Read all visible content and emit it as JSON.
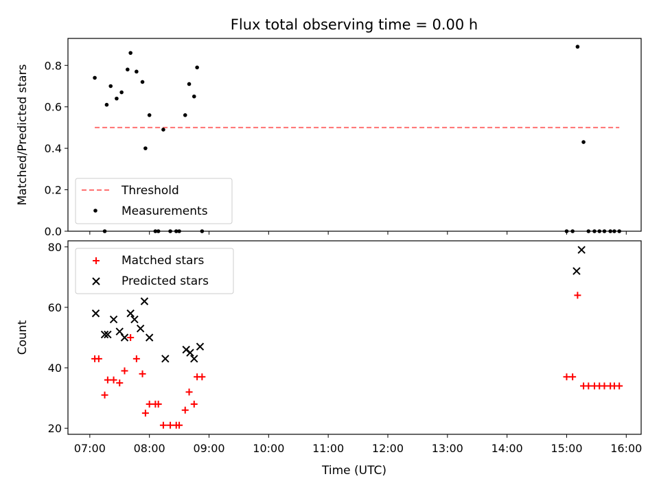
{
  "title": "Flux total observing time = 0.00 h",
  "xlabel": "Time (UTC)",
  "colors": {
    "threshold": "#ff7070",
    "matched": "#ff0000",
    "predicted": "#000000",
    "measurements": "#000000"
  },
  "chart_data": [
    {
      "type": "scatter",
      "ylabel": "Matched/Predicted stars",
      "xlim": [
        "06:38",
        "16:15"
      ],
      "ylim": [
        0,
        0.93
      ],
      "yticks": [
        "0.0",
        "0.2",
        "0.4",
        "0.6",
        "0.8"
      ],
      "legend_position": "lower-left",
      "threshold": {
        "name": "Threshold",
        "x": [
          "07:05",
          "15:53"
        ],
        "y": 0.5
      },
      "series": [
        {
          "name": "Measurements",
          "x": [
            "07:05",
            "07:15",
            "07:17",
            "07:21",
            "07:27",
            "07:32",
            "07:38",
            "07:41",
            "07:47",
            "07:53",
            "07:56",
            "08:00",
            "08:06",
            "08:09",
            "08:14",
            "08:21",
            "08:27",
            "08:30",
            "08:36",
            "08:40",
            "08:45",
            "08:48",
            "08:53",
            "15:00",
            "15:06",
            "15:11",
            "15:17",
            "15:22",
            "15:28",
            "15:33",
            "15:38",
            "15:44",
            "15:48",
            "15:53"
          ],
          "y": [
            0.74,
            0,
            0.61,
            0.7,
            0.64,
            0.67,
            0.78,
            0.86,
            0.77,
            0.72,
            0.4,
            0.56,
            0,
            0,
            0.49,
            0,
            0,
            0,
            0.56,
            0.71,
            0.65,
            0.79,
            0,
            0,
            0,
            0.89,
            0.43,
            0,
            0,
            0,
            0,
            0,
            0,
            0
          ]
        }
      ]
    },
    {
      "type": "scatter",
      "ylabel": "Count",
      "xlim": [
        "06:38",
        "16:15"
      ],
      "ylim": [
        18,
        82
      ],
      "yticks": [
        "20",
        "40",
        "60",
        "80"
      ],
      "xticks": [
        "07:00",
        "08:00",
        "09:00",
        "10:00",
        "11:00",
        "12:00",
        "13:00",
        "14:00",
        "15:00",
        "16:00"
      ],
      "legend_position": "upper-left",
      "series": [
        {
          "name": "Matched stars",
          "x": [
            "07:05",
            "07:09",
            "07:15",
            "07:18",
            "07:24",
            "07:30",
            "07:35",
            "07:41",
            "07:47",
            "07:53",
            "07:56",
            "08:00",
            "08:06",
            "08:09",
            "08:14",
            "08:21",
            "08:27",
            "08:30",
            "08:36",
            "08:40",
            "08:45",
            "08:48",
            "08:53",
            "15:00",
            "15:06",
            "15:11",
            "15:17",
            "15:22",
            "15:28",
            "15:33",
            "15:38",
            "15:44",
            "15:48",
            "15:53"
          ],
          "y": [
            43,
            43,
            31,
            36,
            36,
            35,
            39,
            50,
            43,
            38,
            25,
            28,
            28,
            28,
            21,
            21,
            21,
            21,
            26,
            32,
            28,
            37,
            37,
            37,
            37,
            64,
            34,
            34,
            34,
            34,
            34,
            34,
            34,
            34
          ]
        },
        {
          "name": "Predicted stars",
          "x": [
            "07:06",
            "07:15",
            "07:18",
            "07:24",
            "07:30",
            "07:35",
            "07:41",
            "07:45",
            "07:51",
            "07:55",
            "08:00",
            "08:16",
            "08:37",
            "08:41",
            "08:45",
            "08:51",
            "15:10",
            "15:15"
          ],
          "y": [
            58,
            51,
            51,
            56,
            52,
            50,
            58,
            56,
            53,
            62,
            50,
            43,
            46,
            45,
            43,
            47,
            72,
            79
          ]
        }
      ]
    }
  ]
}
